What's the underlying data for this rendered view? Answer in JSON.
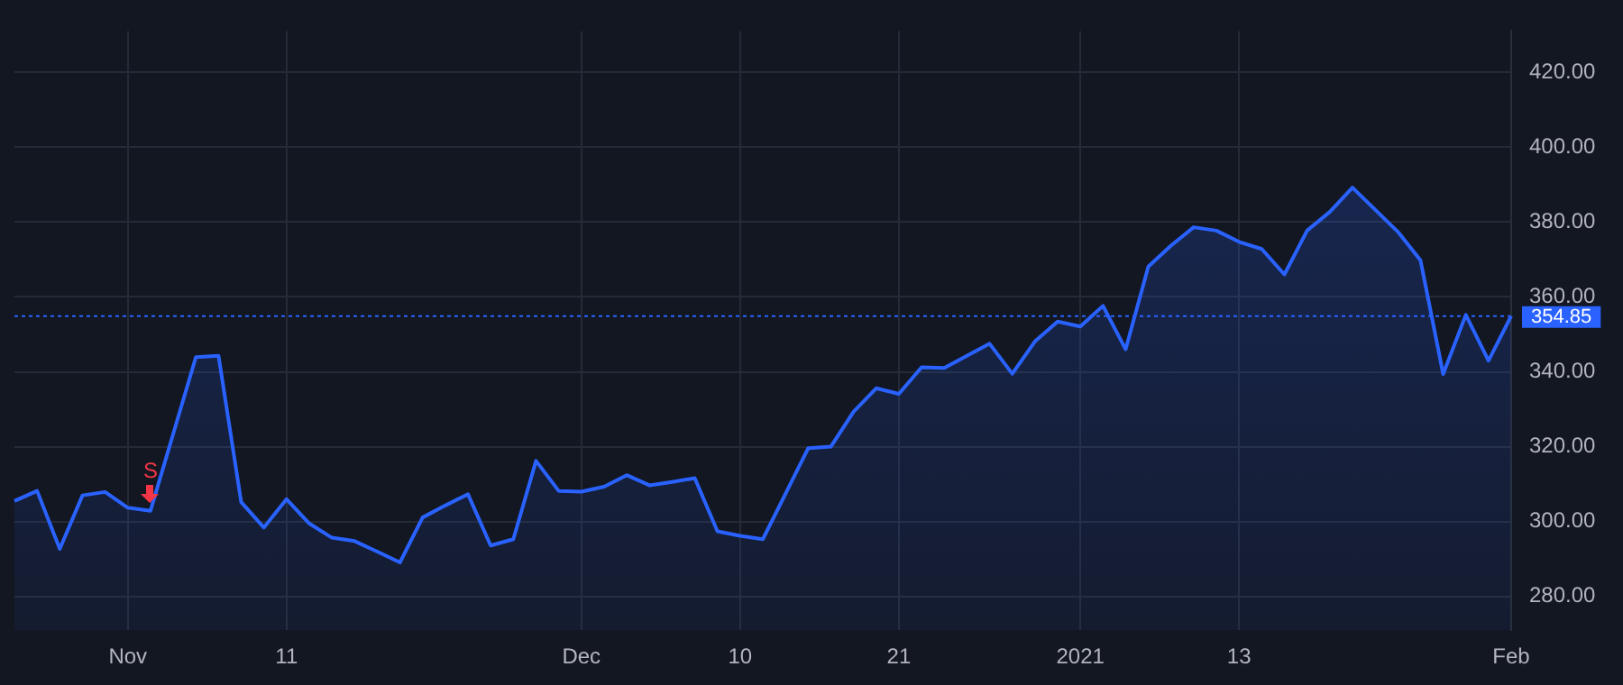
{
  "chart_data": {
    "type": "area",
    "categories": [
      null,
      null,
      null,
      null,
      null,
      "Nov",
      null,
      null,
      null,
      null,
      null,
      null,
      "11",
      null,
      null,
      null,
      null,
      null,
      null,
      null,
      null,
      null,
      null,
      null,
      null,
      "Dec",
      null,
      null,
      null,
      null,
      null,
      null,
      "10",
      null,
      null,
      null,
      null,
      null,
      null,
      "21",
      null,
      null,
      null,
      null,
      null,
      null,
      null,
      "2021",
      null,
      null,
      null,
      null,
      null,
      null,
      "13",
      null,
      null,
      null,
      null,
      null,
      null,
      null,
      null,
      null,
      null,
      null,
      "Feb"
    ],
    "series": [
      {
        "color": "#2962ff",
        "values": [
          305.5,
          308.2,
          292.7,
          307.0,
          307.9,
          303.7,
          302.9,
          323.4,
          343.9,
          344.3,
          305.2,
          298.4,
          306.0,
          299.5,
          295.7,
          294.8,
          292.0,
          289.1,
          301.1,
          304.3,
          307.3,
          293.6,
          295.3,
          316.2,
          308.2,
          308.0,
          309.3,
          312.4,
          309.7,
          310.6,
          311.6,
          297.4,
          296.2,
          295.3,
          307.4,
          319.6,
          320.0,
          329.3,
          335.6,
          334.1,
          341.2,
          341.0,
          344.3,
          347.5,
          339.5,
          348.1,
          353.4,
          352.1,
          357.6,
          346.0,
          368.1,
          373.7,
          378.6,
          377.7,
          374.7,
          372.8,
          366.0,
          377.7,
          382.7,
          389.2,
          383.3,
          377.4,
          369.8,
          339.4,
          355.2,
          343.0,
          354.9
        ]
      }
    ],
    "ylim": [
      271,
      431
    ],
    "yticks": [
      {
        "value": 280,
        "label": "280.00"
      },
      {
        "value": 300,
        "label": "300.00"
      },
      {
        "value": 320,
        "label": "320.00"
      },
      {
        "value": 340,
        "label": "340.00"
      },
      {
        "value": 360,
        "label": "360.00"
      },
      {
        "value": 380,
        "label": "380.00"
      },
      {
        "value": 400,
        "label": "400.00"
      },
      {
        "value": 420,
        "label": "420.00"
      }
    ],
    "grid": true,
    "legend": false,
    "ref_lines": [
      {
        "axis": "y",
        "value": 354.85,
        "label": "354.85",
        "color": "#2962ff",
        "line_style": "dotted"
      }
    ],
    "annotations": [
      {
        "text": "S",
        "y": 302.9
      }
    ]
  }
}
